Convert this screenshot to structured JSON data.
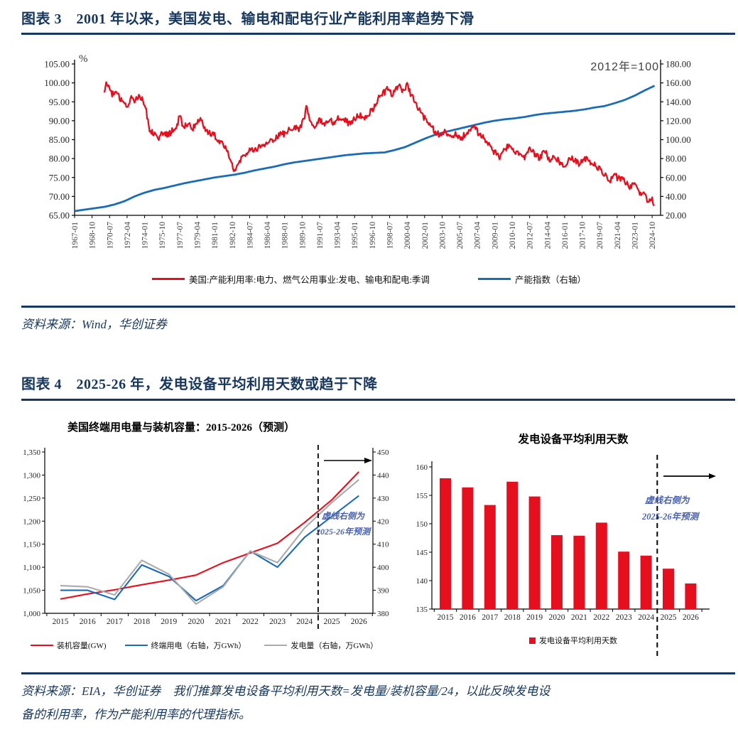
{
  "colors": {
    "navy": "#17375E",
    "red": "#E60F1E",
    "blue": "#1B6CB5",
    "gray": "#ABABAB",
    "annotation_blue": "#4A62AD",
    "axis_text": "#262626"
  },
  "figure3": {
    "title": "图表 3　2001 年以来，美国发电、输电和配电行业产能利用率趋势下滑",
    "source": "资料来源：Wind，华创证券"
  },
  "figure4": {
    "title": "图表 4　2025-26 年，发电设备平均利用天数或趋于下降",
    "source_line1": "资料来源：EIA，华创证券　我们推算发电设备平均利用天数=发电量/装机容量/24，以此反映发电设",
    "source_line2": "备的利用率，作为产能利用率的代理指标。"
  },
  "chart_data": [
    {
      "type": "line",
      "percent_label": "%",
      "annotation": "2012年=100",
      "y_left": {
        "min": 65,
        "max": 105,
        "ticks": [
          "105.00",
          "100.00",
          "95.00",
          "90.00",
          "85.00",
          "80.00",
          "75.00",
          "70.00",
          "65.00"
        ]
      },
      "y_right": {
        "min": 20,
        "max": 180,
        "ticks": [
          "180.00",
          "160.00",
          "140.00",
          "120.00",
          "100.00",
          "80.00",
          "60.00",
          "40.00",
          "20.00"
        ]
      },
      "x_ticks": [
        "1967-01",
        "1968-10",
        "1970-07",
        "1972-04",
        "1974-01",
        "1975-10",
        "1977-07",
        "1979-04",
        "1981-01",
        "1982-10",
        "1984-07",
        "1986-04",
        "1988-01",
        "1989-10",
        "1991-07",
        "1993-04",
        "1995-01",
        "1996-10",
        "1998-07",
        "2000-04",
        "2002-01",
        "2003-10",
        "2005-07",
        "2007-04",
        "2009-01",
        "2010-10",
        "2012-07",
        "2014-04",
        "2016-01",
        "2017-10",
        "2019-07",
        "2021-04",
        "2023-01",
        "2024-10"
      ],
      "series": [
        {
          "name": "美国:产能利用率:电力、燃气公用事业:发电、输电和配电:季调",
          "color": "#E60F1E",
          "axis": "left",
          "noise": 0.85,
          "points": [
            [
              1969.9,
              97.8
            ],
            [
              1970.1,
              99.0
            ],
            [
              1970.3,
              100.3
            ],
            [
              1970.5,
              98.2
            ],
            [
              1970.8,
              97.0
            ],
            [
              1971.2,
              97.4
            ],
            [
              1971.6,
              95.4
            ],
            [
              1972.0,
              95.2
            ],
            [
              1972.3,
              93.8
            ],
            [
              1972.7,
              96.6
            ],
            [
              1973.0,
              95.2
            ],
            [
              1973.4,
              96.8
            ],
            [
              1973.8,
              95.8
            ],
            [
              1974.1,
              93.5
            ],
            [
              1974.5,
              87.6
            ],
            [
              1975.0,
              86.8
            ],
            [
              1975.4,
              85.6
            ],
            [
              1975.8,
              86.6
            ],
            [
              1976.3,
              86.2
            ],
            [
              1976.8,
              87.4
            ],
            [
              1977.2,
              88.2
            ],
            [
              1977.5,
              91.2
            ],
            [
              1977.9,
              88.2
            ],
            [
              1978.3,
              89.4
            ],
            [
              1978.8,
              88.0
            ],
            [
              1979.2,
              89.6
            ],
            [
              1979.6,
              90.6
            ],
            [
              1980.0,
              88.2
            ],
            [
              1980.5,
              86.6
            ],
            [
              1981.0,
              86.2
            ],
            [
              1981.5,
              84.6
            ],
            [
              1982.0,
              83.6
            ],
            [
              1982.5,
              80.6
            ],
            [
              1982.9,
              77.4
            ],
            [
              1983.1,
              76.9
            ],
            [
              1983.5,
              79.2
            ],
            [
              1984.0,
              81.2
            ],
            [
              1984.5,
              82.2
            ],
            [
              1985.0,
              82.0
            ],
            [
              1985.5,
              83.6
            ],
            [
              1986.0,
              83.2
            ],
            [
              1986.5,
              84.6
            ],
            [
              1987.0,
              85.2
            ],
            [
              1987.5,
              86.2
            ],
            [
              1988.0,
              86.6
            ],
            [
              1988.5,
              87.6
            ],
            [
              1989.0,
              88.8
            ],
            [
              1989.4,
              87.4
            ],
            [
              1990.0,
              91.2
            ],
            [
              1990.2,
              94.0
            ],
            [
              1990.5,
              90.0
            ],
            [
              1991.0,
              88.2
            ],
            [
              1991.5,
              90.2
            ],
            [
              1992.0,
              88.6
            ],
            [
              1992.5,
              90.0
            ],
            [
              1993.0,
              89.4
            ],
            [
              1993.5,
              91.2
            ],
            [
              1994.0,
              90.2
            ],
            [
              1994.5,
              89.2
            ],
            [
              1995.0,
              90.6
            ],
            [
              1995.5,
              91.6
            ],
            [
              1996.0,
              90.4
            ],
            [
              1996.5,
              92.2
            ],
            [
              1997.0,
              93.6
            ],
            [
              1997.5,
              96.4
            ],
            [
              1998.0,
              97.6
            ],
            [
              1998.3,
              99.0
            ],
            [
              1998.7,
              96.6
            ],
            [
              1999.0,
              98.2
            ],
            [
              1999.4,
              99.4
            ],
            [
              1999.8,
              97.6
            ],
            [
              2000.2,
              99.6
            ],
            [
              2000.6,
              97.2
            ],
            [
              2001.0,
              95.4
            ],
            [
              2001.5,
              92.8
            ],
            [
              2002.0,
              90.6
            ],
            [
              2002.5,
              88.6
            ],
            [
              2003.0,
              87.4
            ],
            [
              2003.5,
              86.0
            ],
            [
              2004.0,
              87.0
            ],
            [
              2004.5,
              85.6
            ],
            [
              2005.0,
              86.6
            ],
            [
              2005.5,
              85.2
            ],
            [
              2006.0,
              86.2
            ],
            [
              2006.5,
              87.6
            ],
            [
              2007.0,
              88.2
            ],
            [
              2007.5,
              86.2
            ],
            [
              2008.0,
              85.2
            ],
            [
              2008.5,
              83.6
            ],
            [
              2009.0,
              81.6
            ],
            [
              2009.5,
              80.2
            ],
            [
              2010.0,
              82.6
            ],
            [
              2010.5,
              83.4
            ],
            [
              2011.0,
              82.2
            ],
            [
              2011.5,
              81.2
            ],
            [
              2012.0,
              80.2
            ],
            [
              2012.5,
              82.2
            ],
            [
              2013.0,
              81.2
            ],
            [
              2013.5,
              80.2
            ],
            [
              2014.0,
              82.2
            ],
            [
              2014.5,
              79.6
            ],
            [
              2015.0,
              80.6
            ],
            [
              2015.5,
              79.2
            ],
            [
              2016.0,
              78.2
            ],
            [
              2016.5,
              80.2
            ],
            [
              2017.0,
              79.6
            ],
            [
              2017.5,
              78.6
            ],
            [
              2018.0,
              80.2
            ],
            [
              2018.5,
              79.2
            ],
            [
              2019.0,
              78.6
            ],
            [
              2019.5,
              77.2
            ],
            [
              2020.0,
              75.6
            ],
            [
              2020.5,
              74.2
            ],
            [
              2021.0,
              75.6
            ],
            [
              2021.5,
              74.6
            ],
            [
              2022.0,
              74.2
            ],
            [
              2022.5,
              72.6
            ],
            [
              2023.0,
              73.2
            ],
            [
              2023.5,
              71.2
            ],
            [
              2024.0,
              70.2
            ],
            [
              2024.4,
              68.8
            ],
            [
              2024.7,
              70.0
            ],
            [
              2025.0,
              67.4
            ]
          ]
        },
        {
          "name": "产能指数（右轴）",
          "color": "#1B6CB5",
          "axis": "right",
          "noise": 0,
          "points": [
            [
              1967,
              24.5
            ],
            [
              1968,
              26
            ],
            [
              1969,
              27.5
            ],
            [
              1970,
              29
            ],
            [
              1971,
              31.5
            ],
            [
              1972,
              35
            ],
            [
              1973,
              40
            ],
            [
              1974,
              44
            ],
            [
              1975,
              47
            ],
            [
              1976,
              49
            ],
            [
              1977,
              51.5
            ],
            [
              1978,
              54
            ],
            [
              1979,
              56
            ],
            [
              1980,
              58
            ],
            [
              1981,
              60
            ],
            [
              1982,
              61.5
            ],
            [
              1983,
              63
            ],
            [
              1984,
              65
            ],
            [
              1985,
              67.5
            ],
            [
              1986,
              69.5
            ],
            [
              1987,
              71.5
            ],
            [
              1988,
              74
            ],
            [
              1989,
              76
            ],
            [
              1990,
              77.5
            ],
            [
              1991,
              79
            ],
            [
              1992,
              80.5
            ],
            [
              1993,
              82
            ],
            [
              1994,
              83.5
            ],
            [
              1995,
              84.5
            ],
            [
              1996,
              85.5
            ],
            [
              1997,
              86
            ],
            [
              1998,
              86.5
            ],
            [
              1999,
              89
            ],
            [
              2000,
              92
            ],
            [
              2001,
              96.5
            ],
            [
              2002,
              101
            ],
            [
              2003,
              105
            ],
            [
              2004,
              108
            ],
            [
              2005,
              110.5
            ],
            [
              2006,
              113
            ],
            [
              2007,
              115.5
            ],
            [
              2008,
              118
            ],
            [
              2009,
              120
            ],
            [
              2010,
              121.5
            ],
            [
              2011,
              122.5
            ],
            [
              2012,
              124
            ],
            [
              2013,
              126
            ],
            [
              2014,
              127.5
            ],
            [
              2015,
              128.5
            ],
            [
              2016,
              129.5
            ],
            [
              2017,
              130.5
            ],
            [
              2018,
              132
            ],
            [
              2019,
              134
            ],
            [
              2020,
              135.5
            ],
            [
              2021,
              138.5
            ],
            [
              2022,
              142
            ],
            [
              2023,
              146.5
            ],
            [
              2024,
              152
            ],
            [
              2025,
              157
            ]
          ]
        }
      ]
    },
    {
      "type": "line",
      "title": "美国终端用电量与装机容量：2015-2026（预测）",
      "x": [
        2015,
        2016,
        2017,
        2018,
        2019,
        2020,
        2021,
        2022,
        2023,
        2024,
        2025,
        2026
      ],
      "y_left": {
        "min": 1000,
        "max": 1350,
        "ticks": [
          "1,350",
          "1,300",
          "1,250",
          "1,200",
          "1,150",
          "1,100",
          "1,050",
          "1,000"
        ]
      },
      "y_right": {
        "min": 380,
        "max": 450,
        "ticks": [
          "450",
          "440",
          "430",
          "420",
          "410",
          "400",
          "390",
          "380"
        ]
      },
      "series": [
        {
          "name": "装机容量(GW)",
          "color": "#E60F1E",
          "axis": "left",
          "values": [
            1031,
            1042,
            1051,
            1062,
            1072,
            1083,
            1110,
            1131,
            1152,
            1197,
            1246,
            1307
          ]
        },
        {
          "name": "终端用电（右轴，万GWh）",
          "color": "#1B6CB5",
          "axis": "right",
          "values": [
            390,
            390,
            386,
            401,
            396,
            385.5,
            392,
            407,
            400,
            413,
            422,
            431
          ]
        },
        {
          "name": "发电量（右轴，万GWh）",
          "color": "#ABABAB",
          "axis": "right",
          "values": [
            392,
            391.5,
            388,
            403,
            397,
            384,
            391.5,
            407,
            402,
            417,
            428,
            438
          ]
        }
      ],
      "forecast_divider_x": 2024.5,
      "annotation_lines": [
        "虚线右侧为",
        "2025-26年预测"
      ]
    },
    {
      "type": "bar",
      "title": "发电设备平均利用天数",
      "categories": [
        "2015",
        "2016",
        "2017",
        "2018",
        "2019",
        "2020",
        "2021",
        "2022",
        "2023",
        "2024",
        "2025",
        "2026"
      ],
      "values": [
        158.0,
        156.4,
        153.3,
        157.4,
        154.8,
        148.0,
        147.9,
        150.2,
        145.1,
        144.4,
        142.1,
        139.5
      ],
      "bar_color": "#E60F1E",
      "y": {
        "min": 135,
        "max": 160,
        "ticks": [
          "160",
          "155",
          "150",
          "145",
          "140",
          "135"
        ]
      },
      "legend_label": "发电设备平均利用天数",
      "forecast_divider_x": 2024.5,
      "annotation_lines": [
        "虚线右侧为",
        "2025-26年预测"
      ]
    }
  ]
}
